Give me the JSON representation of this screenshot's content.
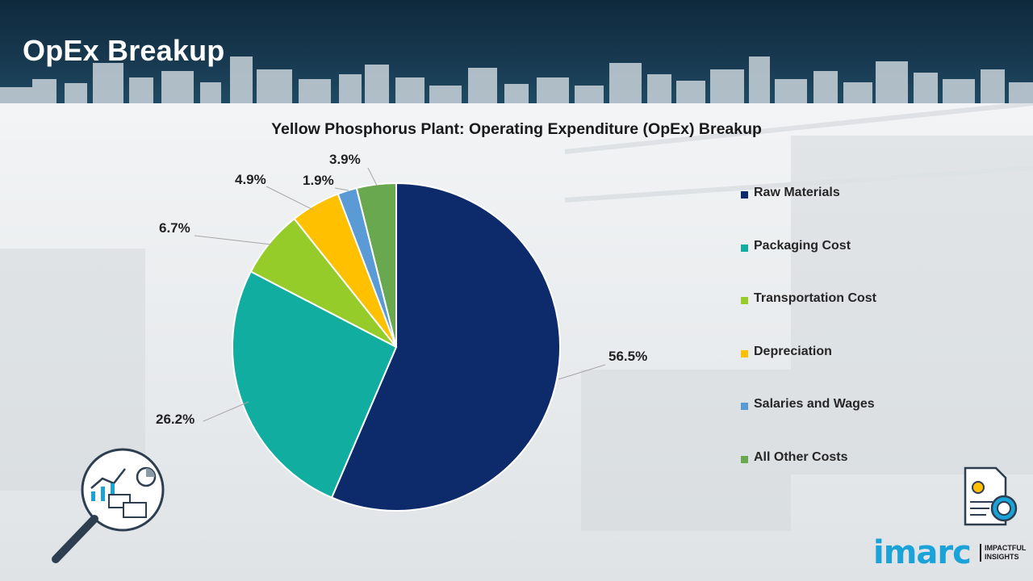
{
  "header": {
    "title": "OpEx Breakup"
  },
  "chart_data": {
    "type": "pie",
    "title": "Yellow Phosphorus Plant: Operating Expenditure (OpEx) Breakup",
    "legend_position": "right",
    "slices": [
      {
        "name": "Raw Materials",
        "value": 56.5,
        "label": "56.5%",
        "color": "#0d2a6b"
      },
      {
        "name": "Packaging Cost",
        "value": 26.2,
        "label": "26.2%",
        "color": "#10ada0"
      },
      {
        "name": "Transportation Cost",
        "value": 6.7,
        "label": "6.7%",
        "color": "#96cc2a"
      },
      {
        "name": "Depreciation",
        "value": 4.9,
        "label": "4.9%",
        "color": "#ffc000"
      },
      {
        "name": "Salaries and Wages",
        "value": 1.9,
        "label": "1.9%",
        "color": "#5b9bd5"
      },
      {
        "name": "All Other Costs",
        "value": 3.9,
        "label": "3.9%",
        "color": "#6aa84f"
      }
    ]
  },
  "brand": {
    "logo_text": "imarc",
    "tagline_line1": "IMPACTFUL",
    "tagline_line2": "INSIGHTS",
    "accent": "#1ba3d9"
  },
  "icons": {
    "analytics": "magnifier-analytics-icon",
    "cost": "cost-document-icon"
  }
}
